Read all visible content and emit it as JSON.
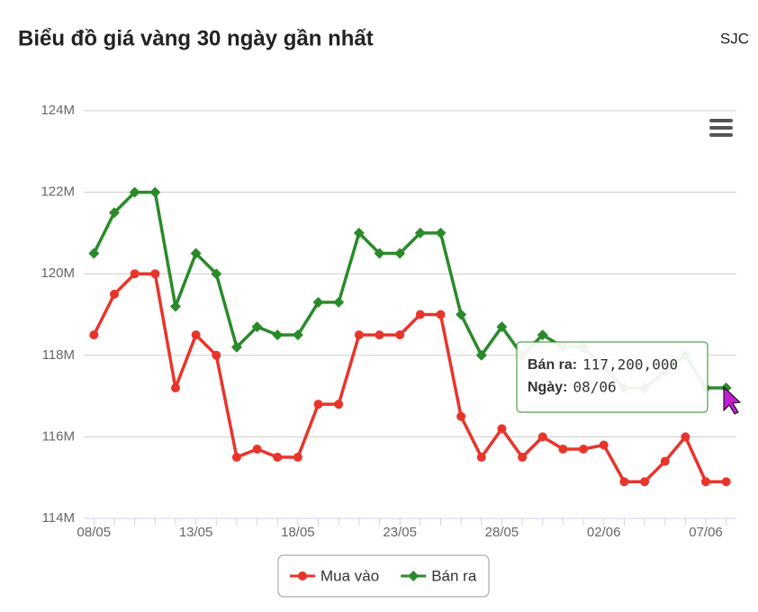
{
  "chart_data": {
    "type": "line",
    "title": "Biểu đồ giá vàng 30 ngày gần nhất",
    "subtitle": "SJC",
    "categories": [
      "08/05",
      null,
      null,
      null,
      null,
      "13/05",
      null,
      null,
      null,
      null,
      "18/05",
      null,
      null,
      null,
      null,
      "23/05",
      null,
      null,
      null,
      null,
      "28/05",
      null,
      null,
      null,
      null,
      "02/06",
      null,
      null,
      null,
      null,
      "07/06",
      null
    ],
    "series": [
      {
        "name": "Mua vào",
        "color": "#e8352b",
        "marker": "circle",
        "values": [
          118.5,
          119.5,
          120,
          120,
          117.2,
          118.5,
          118,
          115.5,
          115.7,
          115.5,
          115.5,
          116.8,
          116.8,
          118.5,
          118.5,
          118.5,
          119,
          119,
          116.5,
          115.5,
          116.2,
          115.5,
          116,
          115.7,
          115.7,
          115.8,
          114.9,
          114.9,
          115.4,
          116,
          114.9,
          114.9
        ]
      },
      {
        "name": "Bán ra",
        "color": "#2a8a2a",
        "marker": "diamond",
        "values": [
          120.5,
          121.5,
          122,
          122,
          119.2,
          120.5,
          120,
          118.2,
          118.7,
          118.5,
          118.5,
          119.3,
          119.3,
          121,
          120.5,
          120.5,
          121,
          121,
          119,
          118,
          118.7,
          118,
          118.5,
          118.2,
          118.2,
          117.7,
          117.2,
          117.2,
          117.6,
          118,
          117.2,
          117.2
        ]
      }
    ],
    "ylim": [
      114,
      124
    ],
    "yticks": [
      {
        "value": 114,
        "label": "114M"
      },
      {
        "value": 116,
        "label": "116M"
      },
      {
        "value": 118,
        "label": "118M"
      },
      {
        "value": 120,
        "label": "120M"
      },
      {
        "value": 122,
        "label": "122M"
      },
      {
        "value": 124,
        "label": "124M"
      }
    ],
    "grid": true,
    "legend": "bottom",
    "tooltip": {
      "lines": [
        [
          "Bán ra:",
          "117,200,000"
        ],
        [
          "Ngày:",
          "08/06"
        ]
      ]
    }
  }
}
